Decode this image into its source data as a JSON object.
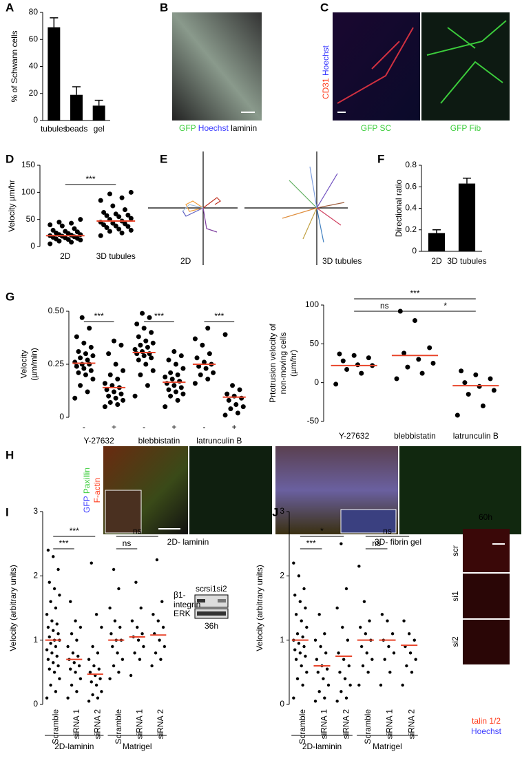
{
  "panel_labels": [
    "A",
    "B",
    "C",
    "D",
    "E",
    "F",
    "G",
    "H",
    "I",
    "J"
  ],
  "figure_panels": {
    "B": {
      "caption": [
        "GFP",
        "Hoechst",
        "laminin"
      ]
    },
    "C": {
      "side_label": [
        "CD31",
        "Hoechst"
      ],
      "captions": [
        "GFP SC",
        "GFP Fib"
      ]
    },
    "E": {
      "labels": [
        "2D",
        "3D tubules"
      ]
    },
    "H": {
      "side_label": [
        "GFP",
        "Paxillin",
        "F-actin"
      ],
      "captions": [
        "2D- laminin",
        "3D- fibrin gel"
      ]
    },
    "I_blot": {
      "lanes": [
        "scr",
        "si1",
        "si2"
      ],
      "bands": [
        "β1-",
        "integrin",
        "ERK"
      ],
      "time": "36h"
    },
    "J_images": {
      "time": "60h",
      "rows": [
        "scr",
        "si1",
        "si2"
      ],
      "legend": [
        "talin 1/2",
        "Hoechst"
      ]
    }
  },
  "chart_data": [
    {
      "type": "bar",
      "ylabel": [
        "% of Schwann cells"
      ],
      "categories": [
        "tubules",
        "beads",
        "gel"
      ],
      "values": [
        69,
        19,
        11
      ],
      "errors": [
        7,
        6,
        4
      ],
      "color": "#000000",
      "ylim": [
        0,
        80
      ],
      "yticks": [
        0,
        20,
        40,
        60,
        80
      ]
    },
    {
      "type": "strip",
      "ylabel": [
        "Velocity µm/hr"
      ],
      "categories": [
        "2D",
        "3D tubules"
      ],
      "color": "#000000",
      "mean_color": "#e8442a",
      "ylim": [
        0,
        150
      ],
      "yticks": [
        0,
        50,
        100,
        150
      ],
      "values": [
        [
          5,
          8,
          10,
          12,
          13,
          14,
          15,
          16,
          17,
          18,
          19,
          20,
          21,
          22,
          22,
          24,
          25,
          27,
          28,
          30,
          33,
          38,
          40,
          43,
          45,
          50
        ],
        [
          20,
          25,
          28,
          30,
          32,
          35,
          37,
          38,
          40,
          42,
          43,
          45,
          47,
          50,
          52,
          55,
          57,
          58,
          60,
          63,
          68,
          75,
          85,
          90,
          97,
          100
        ]
      ],
      "means": [
        20,
        47
      ],
      "brackets": [
        {
          "text": "***",
          "categories": [
            0,
            1
          ]
        }
      ]
    },
    {
      "type": "bar",
      "ylabel": [
        "Directional ratio"
      ],
      "categories": [
        "2D",
        "3D tubules"
      ],
      "values": [
        0.17,
        0.63
      ],
      "errors": [
        0.03,
        0.05
      ],
      "color": "#000000",
      "ylim": [
        0,
        0.8
      ],
      "yticks": [
        0,
        0.2,
        0.4,
        0.6,
        0.8
      ]
    },
    {
      "type": "strip",
      "ylabel": [
        "Velocity",
        "(µm/min)"
      ],
      "categories": [
        "-",
        "+",
        "-",
        "+",
        "-",
        "+"
      ],
      "color": "#000000",
      "mean_color": "#e8442a",
      "ylim": [
        0,
        0.5
      ],
      "yticks": [
        0,
        0.25,
        {
          "value": 0.5,
          "label": "0.50"
        }
      ],
      "values": [
        [
          0.09,
          0.12,
          0.15,
          0.18,
          0.2,
          0.21,
          0.22,
          0.23,
          0.24,
          0.25,
          0.25,
          0.26,
          0.27,
          0.28,
          0.29,
          0.3,
          0.31,
          0.33,
          0.35,
          0.38,
          0.42,
          0.47
        ],
        [
          0.05,
          0.06,
          0.07,
          0.08,
          0.09,
          0.1,
          0.11,
          0.12,
          0.13,
          0.14,
          0.15,
          0.16,
          0.18,
          0.2,
          0.22,
          0.25,
          0.3,
          0.34,
          0.36
        ],
        [
          0.1,
          0.15,
          0.2,
          0.22,
          0.25,
          0.27,
          0.28,
          0.29,
          0.3,
          0.3,
          0.31,
          0.32,
          0.33,
          0.34,
          0.35,
          0.36,
          0.38,
          0.4,
          0.42,
          0.44,
          0.47,
          0.49
        ],
        [
          0.05,
          0.08,
          0.1,
          0.11,
          0.12,
          0.13,
          0.14,
          0.15,
          0.16,
          0.17,
          0.18,
          0.19,
          0.2,
          0.21,
          0.23,
          0.25,
          0.27,
          0.29,
          0.31
        ],
        [
          0.16,
          0.18,
          0.2,
          0.21,
          0.23,
          0.24,
          0.25,
          0.26,
          0.28,
          0.3,
          0.34,
          0.37,
          0.42
        ],
        [
          0.01,
          0.02,
          0.04,
          0.05,
          0.06,
          0.08,
          0.09,
          0.1,
          0.11,
          0.13,
          0.15,
          0.39
        ]
      ],
      "means": [
        0.255,
        0.14,
        0.305,
        0.165,
        0.25,
        0.095
      ],
      "brackets": [
        {
          "text": "***",
          "categories": [
            0,
            1
          ]
        },
        {
          "text": "***",
          "categories": [
            2,
            3
          ]
        },
        {
          "text": "***",
          "categories": [
            4,
            5
          ]
        }
      ],
      "groups": [
        {
          "label": "Y-27632",
          "categories": [
            0,
            1
          ]
        },
        {
          "label": "blebbistatin",
          "categories": [
            2,
            3
          ]
        },
        {
          "label": "latrunculin B",
          "categories": [
            4,
            5
          ]
        }
      ]
    },
    {
      "type": "strip",
      "ylabel": [
        "Prtotrusion velocity of",
        "non-moving cells",
        "(µm/hr)"
      ],
      "categories": [
        "Y-27632",
        "blebbistatin",
        "latrunculin B"
      ],
      "color": "#000000",
      "mean_color": "#e8442a",
      "ylim": [
        -50,
        100
      ],
      "yticks": [
        -50,
        0,
        50,
        100
      ],
      "values": [
        [
          -2,
          12,
          17,
          22,
          23,
          28,
          32,
          35,
          37
        ],
        [
          5,
          12,
          20,
          25,
          30,
          38,
          45,
          80,
          92
        ],
        [
          -42,
          -30,
          -15,
          -10,
          -5,
          0,
          5,
          10,
          15
        ]
      ],
      "means": [
        22,
        35,
        -4
      ],
      "brackets": [
        {
          "text": "ns",
          "categories": [
            0,
            1
          ]
        },
        {
          "text": "*",
          "categories": [
            1,
            2
          ]
        },
        {
          "text": "***",
          "categories": [
            0,
            2
          ]
        }
      ]
    },
    {
      "type": "strip",
      "ylabel": [
        "Velocity (arbitrary units)"
      ],
      "categories": [
        "Scramble",
        "siRNA 1",
        "siRNA 2",
        "Scramble",
        "siRNA 1",
        "siRNA 2"
      ],
      "color": "#000000",
      "mean_color": "#e8442a",
      "ylim": [
        0,
        3
      ],
      "yticks": [
        0,
        1,
        2,
        3
      ],
      "values": [
        [
          0.1,
          0.2,
          0.3,
          0.4,
          0.5,
          0.55,
          0.6,
          0.65,
          0.7,
          0.75,
          0.8,
          0.85,
          0.9,
          0.95,
          1,
          1,
          1.05,
          1.1,
          1.15,
          1.2,
          1.25,
          1.3,
          1.4,
          1.5,
          1.6,
          1.7,
          1.8,
          1.9,
          2.1,
          2.3,
          2.4
        ],
        [
          0.1,
          0.2,
          0.3,
          0.4,
          0.5,
          0.55,
          0.6,
          0.65,
          0.7,
          0.75,
          0.8,
          0.9,
          1,
          1.1,
          1.2,
          1.3,
          1.6
        ],
        [
          0.05,
          0.1,
          0.15,
          0.2,
          0.3,
          0.35,
          0.4,
          0.45,
          0.5,
          0.55,
          0.6,
          0.7,
          0.8,
          0.9,
          1.2,
          1.4,
          2.2
        ],
        [
          0.4,
          0.5,
          0.6,
          0.7,
          0.8,
          0.9,
          1,
          1,
          1.1,
          1.2,
          1.3,
          1.5,
          1.8,
          2.1
        ],
        [
          0.45,
          0.7,
          0.8,
          0.9,
          1,
          1.05,
          1.1,
          1.2,
          1.3,
          1.5,
          1.9
        ],
        [
          0.6,
          0.7,
          0.8,
          0.9,
          1,
          1.1,
          1.2,
          1.3,
          1.4,
          1.6,
          2.25
        ]
      ],
      "means": [
        1.0,
        0.7,
        0.47,
        1.0,
        1.05,
        1.08
      ],
      "brackets": [
        {
          "text": "***",
          "categories": [
            0,
            1
          ]
        },
        {
          "text": "***",
          "categories": [
            0,
            2
          ]
        },
        {
          "text": "ns",
          "categories": [
            3,
            4
          ]
        },
        {
          "text": "ns",
          "categories": [
            3,
            5
          ]
        }
      ],
      "groups": [
        {
          "label": "2D-laminin",
          "categories": [
            0,
            2
          ]
        },
        {
          "label": "Matrigel",
          "categories": [
            3,
            5
          ]
        }
      ]
    },
    {
      "type": "strip",
      "ylabel": [
        "Velocity (arbitrary units)"
      ],
      "categories": [
        "Scramble",
        "siRNA 1",
        "siRNA 2",
        "Scramble",
        "siRNA 1",
        "siRNA 2"
      ],
      "color": "#000000",
      "mean_color": "#e8442a",
      "ylim": [
        0,
        3
      ],
      "yticks": [
        0,
        1,
        2,
        3
      ],
      "values": [
        [
          0.1,
          0.3,
          0.4,
          0.5,
          0.6,
          0.7,
          0.75,
          0.8,
          0.85,
          0.9,
          0.95,
          1,
          1.05,
          1.1,
          1.2,
          1.3,
          1.4,
          1.5,
          1.6,
          1.7,
          1.8,
          2,
          2.2
        ],
        [
          0.05,
          0.1,
          0.2,
          0.3,
          0.4,
          0.5,
          0.55,
          0.6,
          0.7,
          0.8,
          0.9,
          1,
          1.1,
          1.4
        ],
        [
          0.05,
          0.1,
          0.2,
          0.3,
          0.4,
          0.5,
          0.6,
          0.7,
          0.8,
          1,
          1.2,
          1.5,
          1.8,
          2.5
        ],
        [
          0.3,
          0.5,
          0.6,
          0.7,
          0.8,
          0.9,
          1,
          1.1,
          1.2,
          1.3,
          1.6,
          2.15
        ],
        [
          0.3,
          0.5,
          0.7,
          0.8,
          0.9,
          1,
          1.1,
          1.3,
          1.4
        ],
        [
          0.3,
          0.5,
          0.6,
          0.7,
          0.8,
          0.9,
          1,
          1.1,
          1.3
        ]
      ],
      "means": [
        1.0,
        0.6,
        0.75,
        1.0,
        1.0,
        0.92
      ],
      "brackets": [
        {
          "text": "***",
          "categories": [
            0,
            1
          ]
        },
        {
          "text": "*",
          "categories": [
            0,
            2
          ]
        },
        {
          "text": "ns",
          "categories": [
            3,
            4
          ]
        },
        {
          "text": "ns",
          "categories": [
            3,
            5
          ]
        }
      ],
      "groups": [
        {
          "label": "2D-laminin",
          "categories": [
            0,
            2
          ]
        },
        {
          "label": "Matrigel",
          "categories": [
            3,
            5
          ]
        }
      ]
    }
  ]
}
